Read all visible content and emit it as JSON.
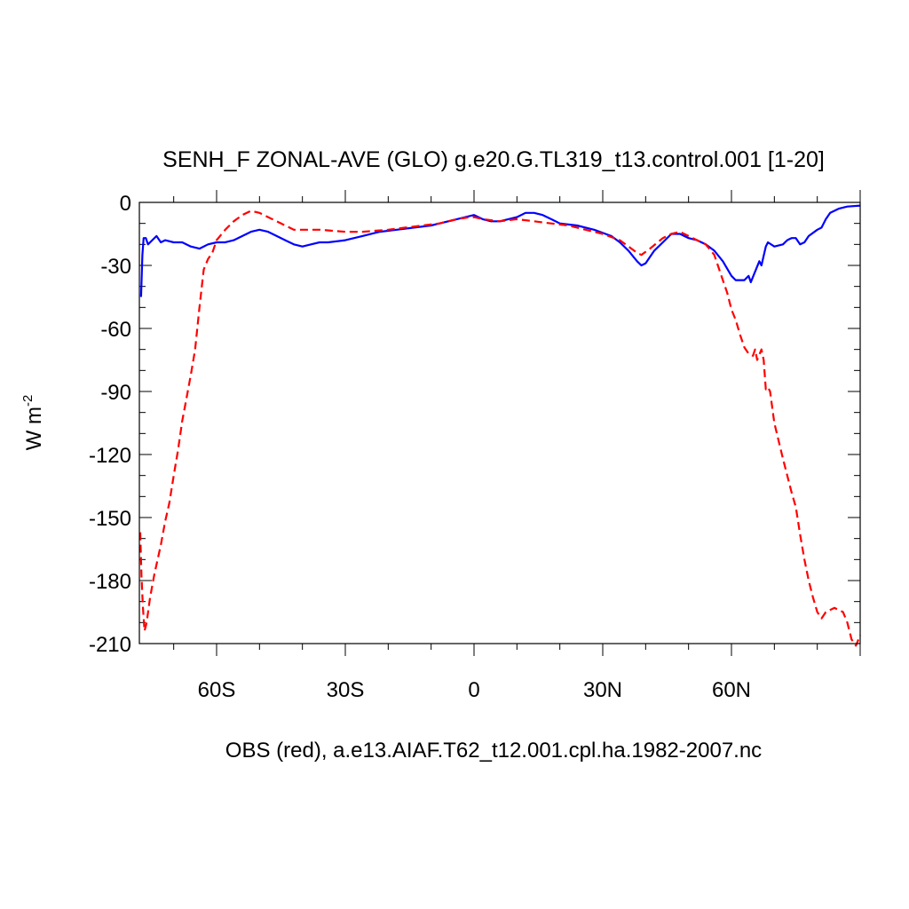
{
  "chart_data": {
    "type": "line",
    "title": "SENH_F ZONAL-AVE (GLO) g.e20.G.TL319_t13.control.001 [1-20]",
    "xlabel": "OBS (red), a.e13.AIAF.T62_t12.001.cpl.ha.1982-2007.nc",
    "ylabel": "W m",
    "ylabel_superscript": "-2",
    "xlim": [
      -78,
      90
    ],
    "ylim": [
      -210,
      0
    ],
    "x_ticks": [
      {
        "value": -60,
        "label": "60S"
      },
      {
        "value": -30,
        "label": "30S"
      },
      {
        "value": 0,
        "label": "0"
      },
      {
        "value": 30,
        "label": "30N"
      },
      {
        "value": 60,
        "label": "60N"
      }
    ],
    "y_ticks": [
      {
        "value": 0,
        "label": "0"
      },
      {
        "value": -30,
        "label": "-30"
      },
      {
        "value": -60,
        "label": "-60"
      },
      {
        "value": -90,
        "label": "-90"
      },
      {
        "value": -120,
        "label": "-120"
      },
      {
        "value": -150,
        "label": "-150"
      },
      {
        "value": -180,
        "label": "-180"
      },
      {
        "value": -210,
        "label": "-210"
      }
    ],
    "series": [
      {
        "color": "#0000ff",
        "dash": "solid",
        "points": [
          [
            -77.6,
            -45
          ],
          [
            -77.3,
            -25
          ],
          [
            -77,
            -17
          ],
          [
            -76.5,
            -17
          ],
          [
            -76,
            -20
          ],
          [
            -75,
            -18
          ],
          [
            -74,
            -16
          ],
          [
            -73,
            -19
          ],
          [
            -72,
            -18
          ],
          [
            -70,
            -19
          ],
          [
            -68,
            -19
          ],
          [
            -66,
            -21
          ],
          [
            -64,
            -22
          ],
          [
            -62,
            -20
          ],
          [
            -60,
            -19
          ],
          [
            -58,
            -19
          ],
          [
            -56,
            -18
          ],
          [
            -54,
            -16
          ],
          [
            -52,
            -14
          ],
          [
            -50,
            -13
          ],
          [
            -48,
            -14
          ],
          [
            -46,
            -16
          ],
          [
            -44,
            -18
          ],
          [
            -42,
            -20
          ],
          [
            -40,
            -21
          ],
          [
            -38,
            -20
          ],
          [
            -36,
            -19
          ],
          [
            -34,
            -19
          ],
          [
            -30,
            -18
          ],
          [
            -26,
            -16
          ],
          [
            -22,
            -14
          ],
          [
            -18,
            -13
          ],
          [
            -14,
            -12
          ],
          [
            -10,
            -11
          ],
          [
            -6,
            -9
          ],
          [
            -4,
            -8
          ],
          [
            -2,
            -7
          ],
          [
            0,
            -6
          ],
          [
            2,
            -8
          ],
          [
            4,
            -9
          ],
          [
            6,
            -9
          ],
          [
            8,
            -8
          ],
          [
            10,
            -7
          ],
          [
            12,
            -5
          ],
          [
            14,
            -5
          ],
          [
            16,
            -6
          ],
          [
            18,
            -8
          ],
          [
            20,
            -10
          ],
          [
            24,
            -11
          ],
          [
            28,
            -13
          ],
          [
            32,
            -16
          ],
          [
            34,
            -19
          ],
          [
            36,
            -23
          ],
          [
            38,
            -28
          ],
          [
            39,
            -30
          ],
          [
            40,
            -29
          ],
          [
            42,
            -23
          ],
          [
            44,
            -19
          ],
          [
            46,
            -15
          ],
          [
            48,
            -15
          ],
          [
            50,
            -17
          ],
          [
            52,
            -18
          ],
          [
            54,
            -20
          ],
          [
            56,
            -23
          ],
          [
            58,
            -28
          ],
          [
            60,
            -35
          ],
          [
            61,
            -37
          ],
          [
            63,
            -37
          ],
          [
            64,
            -35
          ],
          [
            64.5,
            -38
          ],
          [
            65.5,
            -33
          ],
          [
            66.5,
            -28
          ],
          [
            67,
            -30
          ],
          [
            68,
            -21
          ],
          [
            68.5,
            -19
          ],
          [
            70,
            -21
          ],
          [
            72,
            -20
          ],
          [
            73,
            -18
          ],
          [
            74,
            -17
          ],
          [
            75,
            -17
          ],
          [
            76,
            -20
          ],
          [
            77,
            -19
          ],
          [
            78,
            -16
          ],
          [
            80,
            -13
          ],
          [
            81,
            -12
          ],
          [
            82,
            -8
          ],
          [
            83,
            -5
          ],
          [
            85,
            -3
          ],
          [
            87,
            -2
          ],
          [
            90,
            -1.5
          ]
        ]
      },
      {
        "color": "#ff0000",
        "dash": "dashed",
        "points": [
          [
            -77.8,
            -157
          ],
          [
            -77.5,
            -178
          ],
          [
            -77.2,
            -192
          ],
          [
            -76.8,
            -204
          ],
          [
            -76.3,
            -200
          ],
          [
            -75.5,
            -188
          ],
          [
            -74.5,
            -177
          ],
          [
            -73,
            -163
          ],
          [
            -72,
            -152
          ],
          [
            -71,
            -143
          ],
          [
            -70,
            -130
          ],
          [
            -69,
            -118
          ],
          [
            -68,
            -104
          ],
          [
            -67,
            -93
          ],
          [
            -66,
            -82
          ],
          [
            -65,
            -70
          ],
          [
            -64,
            -50
          ],
          [
            -63,
            -32
          ],
          [
            -62,
            -27
          ],
          [
            -61,
            -24
          ],
          [
            -60,
            -18
          ],
          [
            -58,
            -13
          ],
          [
            -56,
            -9
          ],
          [
            -54,
            -6
          ],
          [
            -52,
            -4
          ],
          [
            -50,
            -5
          ],
          [
            -48,
            -7
          ],
          [
            -46,
            -9
          ],
          [
            -44,
            -11
          ],
          [
            -42,
            -13
          ],
          [
            -40,
            -13
          ],
          [
            -36,
            -13
          ],
          [
            -30,
            -14
          ],
          [
            -26,
            -14
          ],
          [
            -20,
            -13
          ],
          [
            -16,
            -12
          ],
          [
            -12,
            -11
          ],
          [
            -8,
            -10
          ],
          [
            -4,
            -8
          ],
          [
            -1,
            -7
          ],
          [
            0,
            -7
          ],
          [
            2,
            -8
          ],
          [
            6,
            -9
          ],
          [
            10,
            -8
          ],
          [
            14,
            -9
          ],
          [
            18,
            -10
          ],
          [
            22,
            -11
          ],
          [
            26,
            -13
          ],
          [
            30,
            -15
          ],
          [
            34,
            -18
          ],
          [
            38,
            -24
          ],
          [
            39,
            -25
          ],
          [
            41,
            -22
          ],
          [
            44,
            -17
          ],
          [
            46,
            -15
          ],
          [
            48,
            -14
          ],
          [
            50,
            -16
          ],
          [
            52,
            -18
          ],
          [
            54,
            -20
          ],
          [
            56,
            -25
          ],
          [
            57,
            -31
          ],
          [
            58,
            -37
          ],
          [
            59,
            -43
          ],
          [
            60,
            -51
          ],
          [
            61,
            -56
          ],
          [
            62,
            -63
          ],
          [
            63,
            -69
          ],
          [
            64,
            -72
          ],
          [
            65,
            -73
          ],
          [
            65.5,
            -70
          ],
          [
            66,
            -75
          ],
          [
            67,
            -70
          ],
          [
            67.5,
            -75
          ],
          [
            68,
            -89
          ],
          [
            68.5,
            -88
          ],
          [
            69,
            -90
          ],
          [
            70,
            -105
          ],
          [
            72,
            -122
          ],
          [
            74,
            -138
          ],
          [
            75,
            -145
          ],
          [
            76,
            -158
          ],
          [
            77,
            -170
          ],
          [
            78,
            -180
          ],
          [
            79,
            -188
          ],
          [
            80,
            -195
          ],
          [
            81,
            -198
          ],
          [
            82,
            -195
          ],
          [
            84,
            -193
          ],
          [
            86,
            -195
          ],
          [
            87,
            -200
          ],
          [
            88,
            -208
          ],
          [
            89,
            -211
          ],
          [
            90,
            -206
          ]
        ]
      }
    ]
  }
}
